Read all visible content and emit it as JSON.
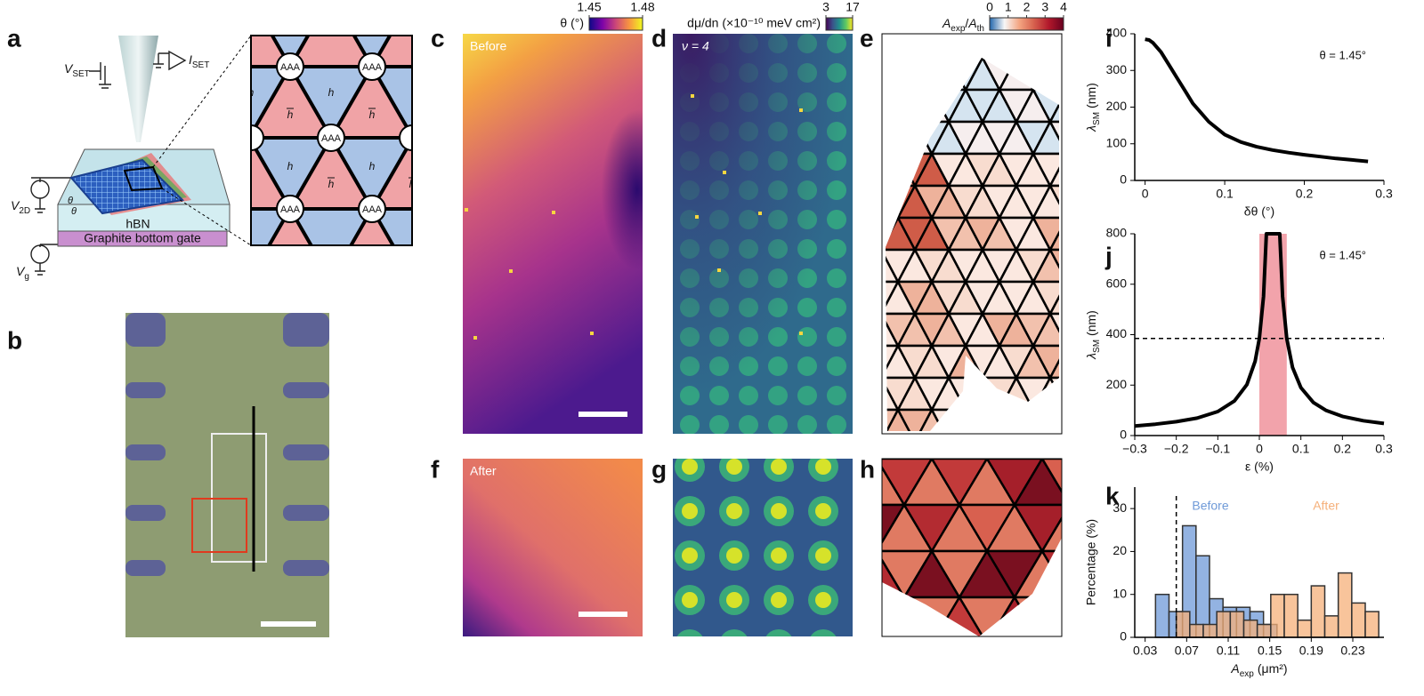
{
  "panel_labels": [
    "a",
    "b",
    "c",
    "d",
    "e",
    "f",
    "g",
    "h",
    "i",
    "j",
    "k"
  ],
  "panel_a": {
    "v_set": {
      "main": "V",
      "sub": "SET"
    },
    "i_set": {
      "main": "I",
      "sub": "SET"
    },
    "v_2d": {
      "main": "V",
      "sub": "2D"
    },
    "v_g": {
      "main": "V",
      "sub": "g"
    },
    "theta_labels": [
      "θ",
      "θ"
    ],
    "hbn": "hBN",
    "gate": "Graphite bottom gate",
    "aaa": [
      "AAA",
      "AAA",
      "AAA",
      "AAA",
      "AAA"
    ],
    "h": [
      "h",
      "h",
      "h",
      "h"
    ],
    "hbar": [
      "h",
      "h",
      "h",
      "h"
    ]
  },
  "maps": {
    "c": "Before",
    "d": "ν = 4",
    "f": "After"
  },
  "colorbars": [
    {
      "label": "θ (°)",
      "ticks": [
        1.45,
        1.48
      ],
      "colors": [
        "#0d0887",
        "#7e03a8",
        "#cc4778",
        "#f89540",
        "#f0f921"
      ]
    },
    {
      "label": "dμ/dn (×10⁻¹⁰ meV cm²)",
      "ticks": [
        3,
        17
      ],
      "colors": [
        "#440154",
        "#3b528b",
        "#21918c",
        "#5ec962",
        "#fde725"
      ]
    },
    {
      "label": {
        "symbol": "A",
        "sub": "exp",
        "sep": "/",
        "symbol2": "A",
        "sub2": "th"
      },
      "ticks": [
        0,
        1,
        2,
        3,
        4
      ],
      "colors": [
        "#2166ac",
        "#f7f7f7",
        "#f4a582",
        "#d6604d",
        "#b2182b",
        "#67001f"
      ]
    }
  ],
  "chart_data": [
    {
      "type": "line",
      "x": [
        0,
        0.005,
        0.01,
        0.02,
        0.03,
        0.04,
        0.05,
        0.06,
        0.08,
        0.1,
        0.12,
        0.14,
        0.16,
        0.18,
        0.2,
        0.22,
        0.24,
        0.26,
        0.28
      ],
      "series": [
        {
          "color": "#000000",
          "values": [
            385,
            383,
            375,
            350,
            315,
            280,
            245,
            210,
            160,
            125,
            105,
            92,
            83,
            76,
            70,
            65,
            60,
            56,
            52
          ]
        }
      ],
      "xlim": [
        -0.013,
        0.3
      ],
      "ylim": [
        0,
        400
      ],
      "xticks": [
        0,
        0.1,
        0.2,
        0.3
      ],
      "yticks": [
        0,
        100,
        200,
        300,
        400
      ],
      "x_label": "δθ (°)",
      "y_label": {
        "symbol": "λ",
        "sub": "SM",
        "unit": "(nm)"
      },
      "annotation": "θ = 1.45°"
    },
    {
      "type": "line",
      "x": [
        -0.3,
        -0.25,
        -0.2,
        -0.15,
        -0.1,
        -0.06,
        -0.03,
        -0.01,
        0,
        0.01,
        0.017,
        0.049,
        0.056,
        0.066,
        0.08,
        0.1,
        0.13,
        0.16,
        0.2,
        0.25,
        0.3
      ],
      "series": [
        {
          "color": "#000000",
          "values": [
            38,
            45,
            55,
            69,
            95,
            137,
            202,
            295,
            385,
            552,
            800,
            800,
            552,
            385,
            270,
            190,
            131,
            100,
            76,
            59,
            48
          ]
        }
      ],
      "xlim": [
        -0.3,
        0.3
      ],
      "ylim": [
        0,
        800
      ],
      "xticks": [
        {
          "value": -0.3,
          "label": "−0.3"
        },
        {
          "value": -0.2,
          "label": "−0.2"
        },
        {
          "value": -0.1,
          "label": "−0.1"
        },
        0,
        0.1,
        0.2,
        0.3
      ],
      "yticks": [
        0,
        200,
        400,
        600,
        800
      ],
      "band": {
        "x": [
          0,
          0.066
        ],
        "color": "#f2a3ab"
      },
      "hline": 385,
      "x_label": "ε (%)",
      "y_label": {
        "symbol": "λ",
        "sub": "SM",
        "unit": "(nm)"
      },
      "annotation": "θ = 1.45°"
    },
    {
      "type": "histogram",
      "series": [
        {
          "name": "Before",
          "color": "#6f9ad8",
          "bins": [
            0.04,
            0.053,
            0.066,
            0.079,
            0.092,
            0.105,
            0.118,
            0.131,
            0.144,
            0.157
          ],
          "values": [
            10,
            6,
            26,
            19,
            9,
            7,
            7,
            6,
            3
          ]
        },
        {
          "name": "After",
          "color": "#f5b07a",
          "bins": [
            0.06,
            0.073,
            0.086,
            0.099,
            0.112,
            0.125,
            0.138,
            0.151,
            0.164,
            0.177,
            0.19,
            0.203,
            0.216,
            0.229,
            0.242,
            0.255
          ],
          "values": [
            6,
            3,
            3,
            6,
            6,
            4,
            3,
            10,
            10,
            4,
            12,
            5,
            15,
            8,
            6
          ]
        }
      ],
      "xlim": [
        0.02,
        0.26
      ],
      "ylim": [
        0,
        35
      ],
      "xticks": [
        0.03,
        0.07,
        0.11,
        0.15,
        0.19,
        0.23
      ],
      "yticks": [
        0,
        10,
        20,
        30
      ],
      "vline": 0.06,
      "x_label": {
        "symbol": "A",
        "sub": "exp",
        "unit": "(μm²)"
      },
      "y_label": "Percentage (%)"
    }
  ]
}
